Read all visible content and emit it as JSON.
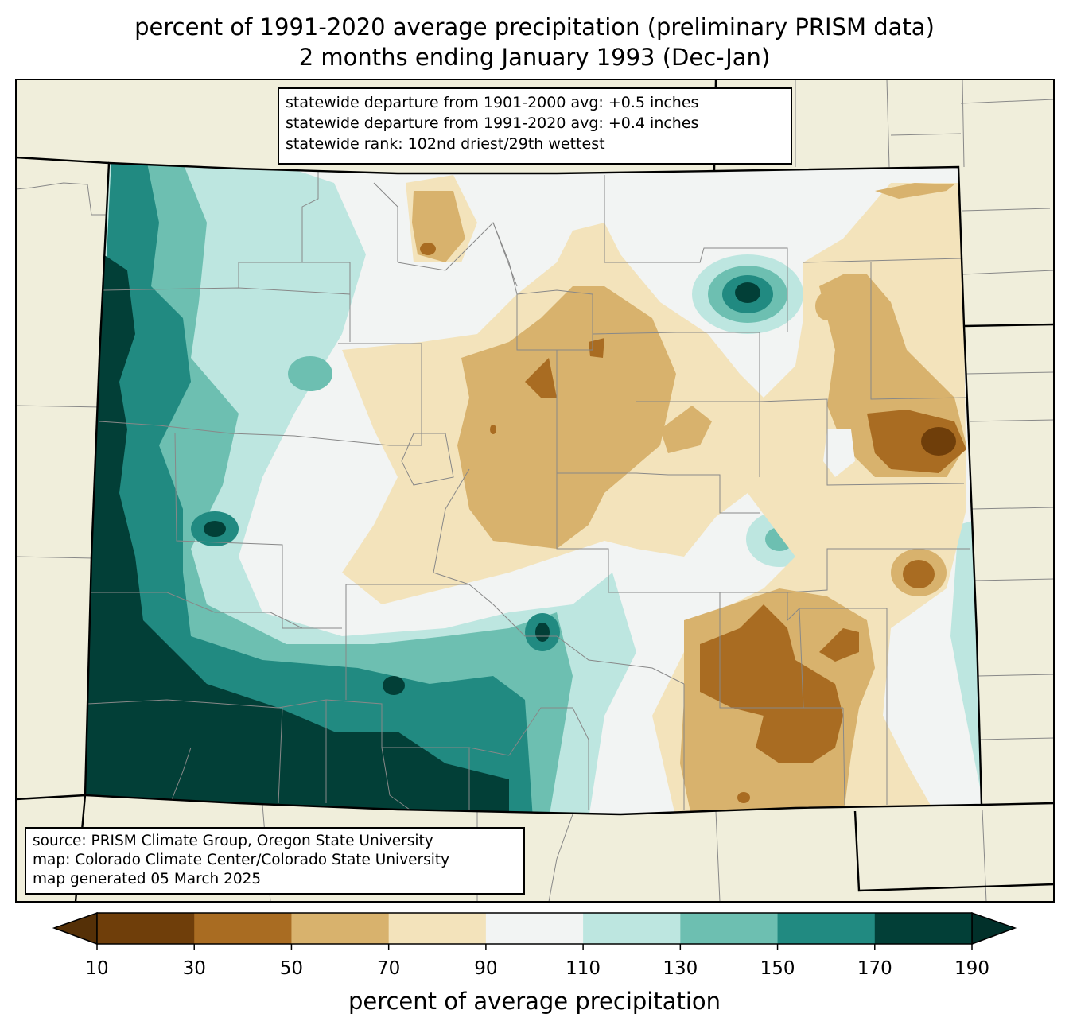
{
  "title": {
    "line1": "percent of 1991-2020 average precipitation (preliminary PRISM data)",
    "line2": "2 months ending January 1993 (Dec-Jan)"
  },
  "stats": {
    "line1": "statewide departure from 1901-2000 avg: +0.5 inches",
    "line2": "statewide departure from 1991-2020 avg: +0.4 inches",
    "line3": "statewide rank: 102nd driest/29th wettest"
  },
  "source": {
    "line1": "source: PRISM Climate Group, Oregon State University",
    "line2": "map: Colorado Climate Center/Colorado State University",
    "line3": "map generated 05 March 2025"
  },
  "colorbar": {
    "label": "percent of average precipitation",
    "ticks": [
      "10",
      "30",
      "50",
      "70",
      "90",
      "110",
      "130",
      "150",
      "170",
      "190"
    ],
    "colors": [
      "#6f3e0a",
      "#a96c22",
      "#d8b26d",
      "#f3e3bb",
      "#f2f4f3",
      "#bde6e0",
      "#6dbfb1",
      "#218a81",
      "#023f37"
    ],
    "under_color": "#553007",
    "over_color": "#01302a"
  }
}
